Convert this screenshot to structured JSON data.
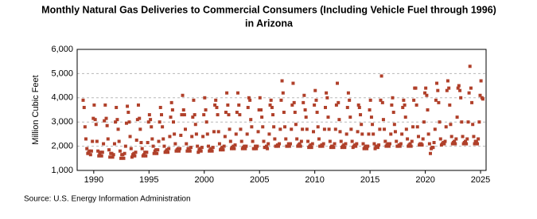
{
  "chart_data": {
    "type": "scatter",
    "title": [
      "Monthly Natural Gas Deliveries to Commercial Consumers (Including Vehicle Fuel through 1996)",
      "in Arizona"
    ],
    "y_label": "Million Cubic Feet",
    "source": "Source: U.S. Energy Information Administration",
    "color": "#b0402a",
    "grid": true,
    "xlim": [
      1988.5,
      2025.5
    ],
    "xticks": [
      1990,
      1995,
      2000,
      2005,
      2010,
      2015,
      2020,
      2025
    ],
    "ylim": [
      1000,
      6000
    ],
    "yticks": [
      {
        "value": 1000,
        "label": "1,000"
      },
      {
        "value": 2000,
        "label": "2,000"
      },
      {
        "value": 3000,
        "label": "3,000"
      },
      {
        "value": 4000,
        "label": "4,000"
      },
      {
        "value": 5000,
        "label": "5,000"
      },
      {
        "value": 6000,
        "label": "6,000"
      }
    ],
    "x": [
      1989.04,
      1989.13,
      1989.21,
      1989.29,
      1989.38,
      1989.46,
      1989.54,
      1989.63,
      1989.71,
      1989.79,
      1989.88,
      1989.96,
      1990.04,
      1990.13,
      1990.21,
      1990.29,
      1990.38,
      1990.46,
      1990.54,
      1990.63,
      1990.71,
      1990.79,
      1990.88,
      1990.96,
      1991.04,
      1991.13,
      1991.21,
      1991.29,
      1991.38,
      1991.46,
      1991.54,
      1991.63,
      1991.71,
      1991.79,
      1991.88,
      1991.96,
      1992.04,
      1992.13,
      1992.21,
      1992.29,
      1992.38,
      1992.46,
      1992.54,
      1992.63,
      1992.71,
      1992.79,
      1992.88,
      1992.96,
      1993.04,
      1993.13,
      1993.21,
      1993.29,
      1993.38,
      1993.46,
      1993.54,
      1993.63,
      1993.71,
      1993.79,
      1993.88,
      1993.96,
      1994.04,
      1994.13,
      1994.21,
      1994.29,
      1994.38,
      1994.46,
      1994.54,
      1994.63,
      1994.71,
      1994.79,
      1994.88,
      1994.96,
      1995.04,
      1995.13,
      1995.21,
      1995.29,
      1995.38,
      1995.46,
      1995.54,
      1995.63,
      1995.71,
      1995.79,
      1995.88,
      1995.96,
      1996.04,
      1996.13,
      1996.21,
      1996.29,
      1996.38,
      1996.46,
      1996.54,
      1996.63,
      1996.71,
      1996.79,
      1996.88,
      1996.96,
      1997.04,
      1997.13,
      1997.21,
      1997.29,
      1997.38,
      1997.46,
      1997.54,
      1997.63,
      1997.71,
      1997.79,
      1997.88,
      1997.96,
      1998.04,
      1998.13,
      1998.21,
      1998.29,
      1998.38,
      1998.46,
      1998.54,
      1998.63,
      1998.71,
      1998.79,
      1998.88,
      1998.96,
      1999.04,
      1999.13,
      1999.21,
      1999.29,
      1999.38,
      1999.46,
      1999.54,
      1999.63,
      1999.71,
      1999.79,
      1999.88,
      1999.96,
      2000.04,
      2000.13,
      2000.21,
      2000.29,
      2000.38,
      2000.46,
      2000.54,
      2000.63,
      2000.71,
      2000.79,
      2000.88,
      2000.96,
      2001.04,
      2001.13,
      2001.21,
      2001.29,
      2001.38,
      2001.46,
      2001.54,
      2001.63,
      2001.71,
      2001.79,
      2001.88,
      2001.96,
      2002.04,
      2002.13,
      2002.21,
      2002.29,
      2002.38,
      2002.46,
      2002.54,
      2002.63,
      2002.71,
      2002.79,
      2002.88,
      2002.96,
      2003.04,
      2003.13,
      2003.21,
      2003.29,
      2003.38,
      2003.46,
      2003.54,
      2003.63,
      2003.71,
      2003.79,
      2003.88,
      2003.96,
      2004.04,
      2004.13,
      2004.21,
      2004.29,
      2004.38,
      2004.46,
      2004.54,
      2004.63,
      2004.71,
      2004.79,
      2004.88,
      2004.96,
      2005.04,
      2005.13,
      2005.21,
      2005.29,
      2005.38,
      2005.46,
      2005.54,
      2005.63,
      2005.71,
      2005.79,
      2005.88,
      2005.96,
      2006.04,
      2006.13,
      2006.21,
      2006.29,
      2006.38,
      2006.46,
      2006.54,
      2006.63,
      2006.71,
      2006.79,
      2006.88,
      2006.96,
      2007.04,
      2007.13,
      2007.21,
      2007.29,
      2007.38,
      2007.46,
      2007.54,
      2007.63,
      2007.71,
      2007.79,
      2007.88,
      2007.96,
      2008.04,
      2008.13,
      2008.21,
      2008.29,
      2008.38,
      2008.46,
      2008.54,
      2008.63,
      2008.71,
      2008.79,
      2008.88,
      2008.96,
      2009.04,
      2009.13,
      2009.21,
      2009.29,
      2009.38,
      2009.46,
      2009.54,
      2009.63,
      2009.71,
      2009.79,
      2009.88,
      2009.96,
      2010.04,
      2010.13,
      2010.21,
      2010.29,
      2010.38,
      2010.46,
      2010.54,
      2010.63,
      2010.71,
      2010.79,
      2010.88,
      2010.96,
      2011.04,
      2011.13,
      2011.21,
      2011.29,
      2011.38,
      2011.46,
      2011.54,
      2011.63,
      2011.71,
      2011.79,
      2011.88,
      2011.96,
      2012.04,
      2012.13,
      2012.21,
      2012.29,
      2012.38,
      2012.46,
      2012.54,
      2012.63,
      2012.71,
      2012.79,
      2012.88,
      2012.96,
      2013.04,
      2013.13,
      2013.21,
      2013.29,
      2013.38,
      2013.46,
      2013.54,
      2013.63,
      2013.71,
      2013.79,
      2013.88,
      2013.96,
      2014.04,
      2014.13,
      2014.21,
      2014.29,
      2014.38,
      2014.46,
      2014.54,
      2014.63,
      2014.71,
      2014.79,
      2014.88,
      2014.96,
      2015.04,
      2015.13,
      2015.21,
      2015.29,
      2015.38,
      2015.46,
      2015.54,
      2015.63,
      2015.71,
      2015.79,
      2015.88,
      2015.96,
      2016.04,
      2016.13,
      2016.21,
      2016.29,
      2016.38,
      2016.46,
      2016.54,
      2016.63,
      2016.71,
      2016.79,
      2016.88,
      2016.96,
      2017.04,
      2017.13,
      2017.21,
      2017.29,
      2017.38,
      2017.46,
      2017.54,
      2017.63,
      2017.71,
      2017.79,
      2017.88,
      2017.96,
      2018.04,
      2018.13,
      2018.21,
      2018.29,
      2018.38,
      2018.46,
      2018.54,
      2018.63,
      2018.71,
      2018.79,
      2018.88,
      2018.96,
      2019.04,
      2019.13,
      2019.21,
      2019.29,
      2019.38,
      2019.46,
      2019.54,
      2019.63,
      2019.71,
      2019.79,
      2019.88,
      2019.96,
      2020.04,
      2020.13,
      2020.21,
      2020.29,
      2020.38,
      2020.46,
      2020.54,
      2020.63,
      2020.71,
      2020.79,
      2020.88,
      2020.96,
      2021.04,
      2021.13,
      2021.21,
      2021.29,
      2021.38,
      2021.46,
      2021.54,
      2021.63,
      2021.71,
      2021.79,
      2021.88,
      2021.96,
      2022.04,
      2022.13,
      2022.21,
      2022.29,
      2022.38,
      2022.46,
      2022.54,
      2022.63,
      2022.71,
      2022.79,
      2022.88,
      2022.96,
      2023.04,
      2023.13,
      2023.21,
      2023.29,
      2023.38,
      2023.46,
      2023.54,
      2023.63,
      2023.71,
      2023.79,
      2023.88,
      2023.96,
      2024.04,
      2024.13,
      2024.21,
      2024.29,
      2024.38,
      2024.46,
      2024.54,
      2024.63,
      2024.71,
      2024.79,
      2024.88,
      2024.96,
      2025.04,
      2025.13,
      2025.21
    ],
    "values": [
      3900,
      3600,
      2800,
      2300,
      1900,
      1700,
      1750,
      1800,
      1650,
      1800,
      2200,
      3150,
      3700,
      3100,
      2900,
      2200,
      1800,
      1600,
      1700,
      1750,
      1600,
      1750,
      2100,
      3050,
      3700,
      3150,
      2850,
      2300,
      1850,
      1550,
      1700,
      1700,
      1550,
      1650,
      2100,
      3000,
      3600,
      3100,
      2700,
      2200,
      1800,
      1500,
      1650,
      1650,
      1500,
      1700,
      2000,
      2950,
      3650,
      3400,
      3000,
      2400,
      1900,
      1550,
      1650,
      1700,
      1600,
      1750,
      2250,
      3100,
      3700,
      3150,
      2700,
      2150,
      1900,
      1600,
      1650,
      1750,
      1600,
      1750,
      2150,
      3000,
      3300,
      3100,
      2800,
      2300,
      2000,
      1700,
      1800,
      1850,
      1700,
      1850,
      2200,
      3000,
      3600,
      3300,
      2800,
      2300,
      2000,
      1750,
      1800,
      1850,
      1750,
      1900,
      2400,
      3200,
      3800,
      3500,
      3000,
      2500,
      2100,
      1800,
      1850,
      1900,
      1800,
      1900,
      2450,
      3300,
      4100,
      3500,
      3300,
      2700,
      2100,
      1800,
      1900,
      1900,
      1800,
      1950,
      2400,
      3200,
      3900,
      3300,
      2900,
      2500,
      2000,
      1750,
      1850,
      1900,
      1800,
      1950,
      2400,
      3300,
      4000,
      3500,
      3000,
      2500,
      2000,
      1800,
      1850,
      1900,
      1800,
      1950,
      2600,
      3700,
      3900,
      3600,
      3300,
      2600,
      2100,
      1850,
      1900,
      1950,
      1850,
      2000,
      2400,
      3400,
      4200,
      3700,
      3300,
      2700,
      2200,
      1900,
      1950,
      2000,
      1900,
      2050,
      2500,
      3400,
      4200,
      3700,
      3300,
      2700,
      2200,
      1900,
      1950,
      2000,
      1900,
      2000,
      2500,
      3600,
      4000,
      3900,
      3100,
      2800,
      2200,
      1900,
      1900,
      2000,
      1900,
      2000,
      2600,
      3500,
      4000,
      3500,
      3200,
      2800,
      2200,
      1950,
      1950,
      2000,
      1900,
      2100,
      2500,
      3700,
      3900,
      3600,
      3300,
      2800,
      2300,
      2000,
      2000,
      2050,
      2000,
      2100,
      2700,
      3900,
      4700,
      4200,
      3400,
      2800,
      2300,
      2000,
      2000,
      2100,
      2000,
      2100,
      2700,
      3700,
      4600,
      3800,
      3400,
      2900,
      2300,
      2000,
      2050,
      2100,
      2000,
      2200,
      2700,
      3800,
      4100,
      3500,
      3200,
      2700,
      2200,
      1950,
      2000,
      2050,
      1950,
      2100,
      2600,
      3700,
      4300,
      3900,
      3400,
      2800,
      2300,
      2000,
      2000,
      2050,
      2000,
      2100,
      2700,
      3600,
      4200,
      4000,
      3200,
      2700,
      2200,
      1950,
      2000,
      2000,
      1950,
      2100,
      2700,
      3700,
      4600,
      3800,
      3100,
      2600,
      2200,
      1950,
      2000,
      2050,
      1950,
      2100,
      2500,
      3600,
      4200,
      3900,
      3200,
      2700,
      2200,
      1950,
      2000,
      2050,
      2000,
      2100,
      2600,
      3700,
      3600,
      3300,
      2900,
      2500,
      2100,
      1900,
      1950,
      2000,
      1900,
      2000,
      2500,
      3500,
      3900,
      3200,
      2900,
      2500,
      2100,
      1900,
      2000,
      2000,
      1950,
      2050,
      2700,
      3900,
      4900,
      3800,
      3100,
      2700,
      2200,
      2000,
      2050,
      2100,
      2000,
      2100,
      2500,
      3700,
      4000,
      3400,
      2900,
      2600,
      2200,
      2000,
      2000,
      2050,
      2000,
      2100,
      2500,
      3600,
      3900,
      3700,
      3200,
      2700,
      2300,
      2000,
      2050,
      2100,
      2000,
      2200,
      2800,
      3900,
      4400,
      4400,
      3700,
      2800,
      2400,
      2050,
      2100,
      2100,
      2050,
      2300,
      3000,
      4200,
      4400,
      4100,
      3500,
      2500,
      2100,
      1700,
      1900,
      1950,
      1950,
      2150,
      2700,
      3900,
      4600,
      4300,
      3800,
      3000,
      2300,
      2050,
      2100,
      2150,
      2100,
      2200,
      2800,
      4300,
      4700,
      4400,
      3700,
      2900,
      2400,
      2100,
      2150,
      2200,
      2100,
      2300,
      3200,
      4400,
      4500,
      4300,
      4000,
      3000,
      2400,
      2100,
      2150,
      2200,
      2100,
      2300,
      3000,
      4200,
      5300,
      4400,
      3800,
      2900,
      2400,
      2100,
      2200,
      2200,
      2100,
      2300,
      3000,
      4100,
      4700,
      4000,
      3950
    ]
  }
}
